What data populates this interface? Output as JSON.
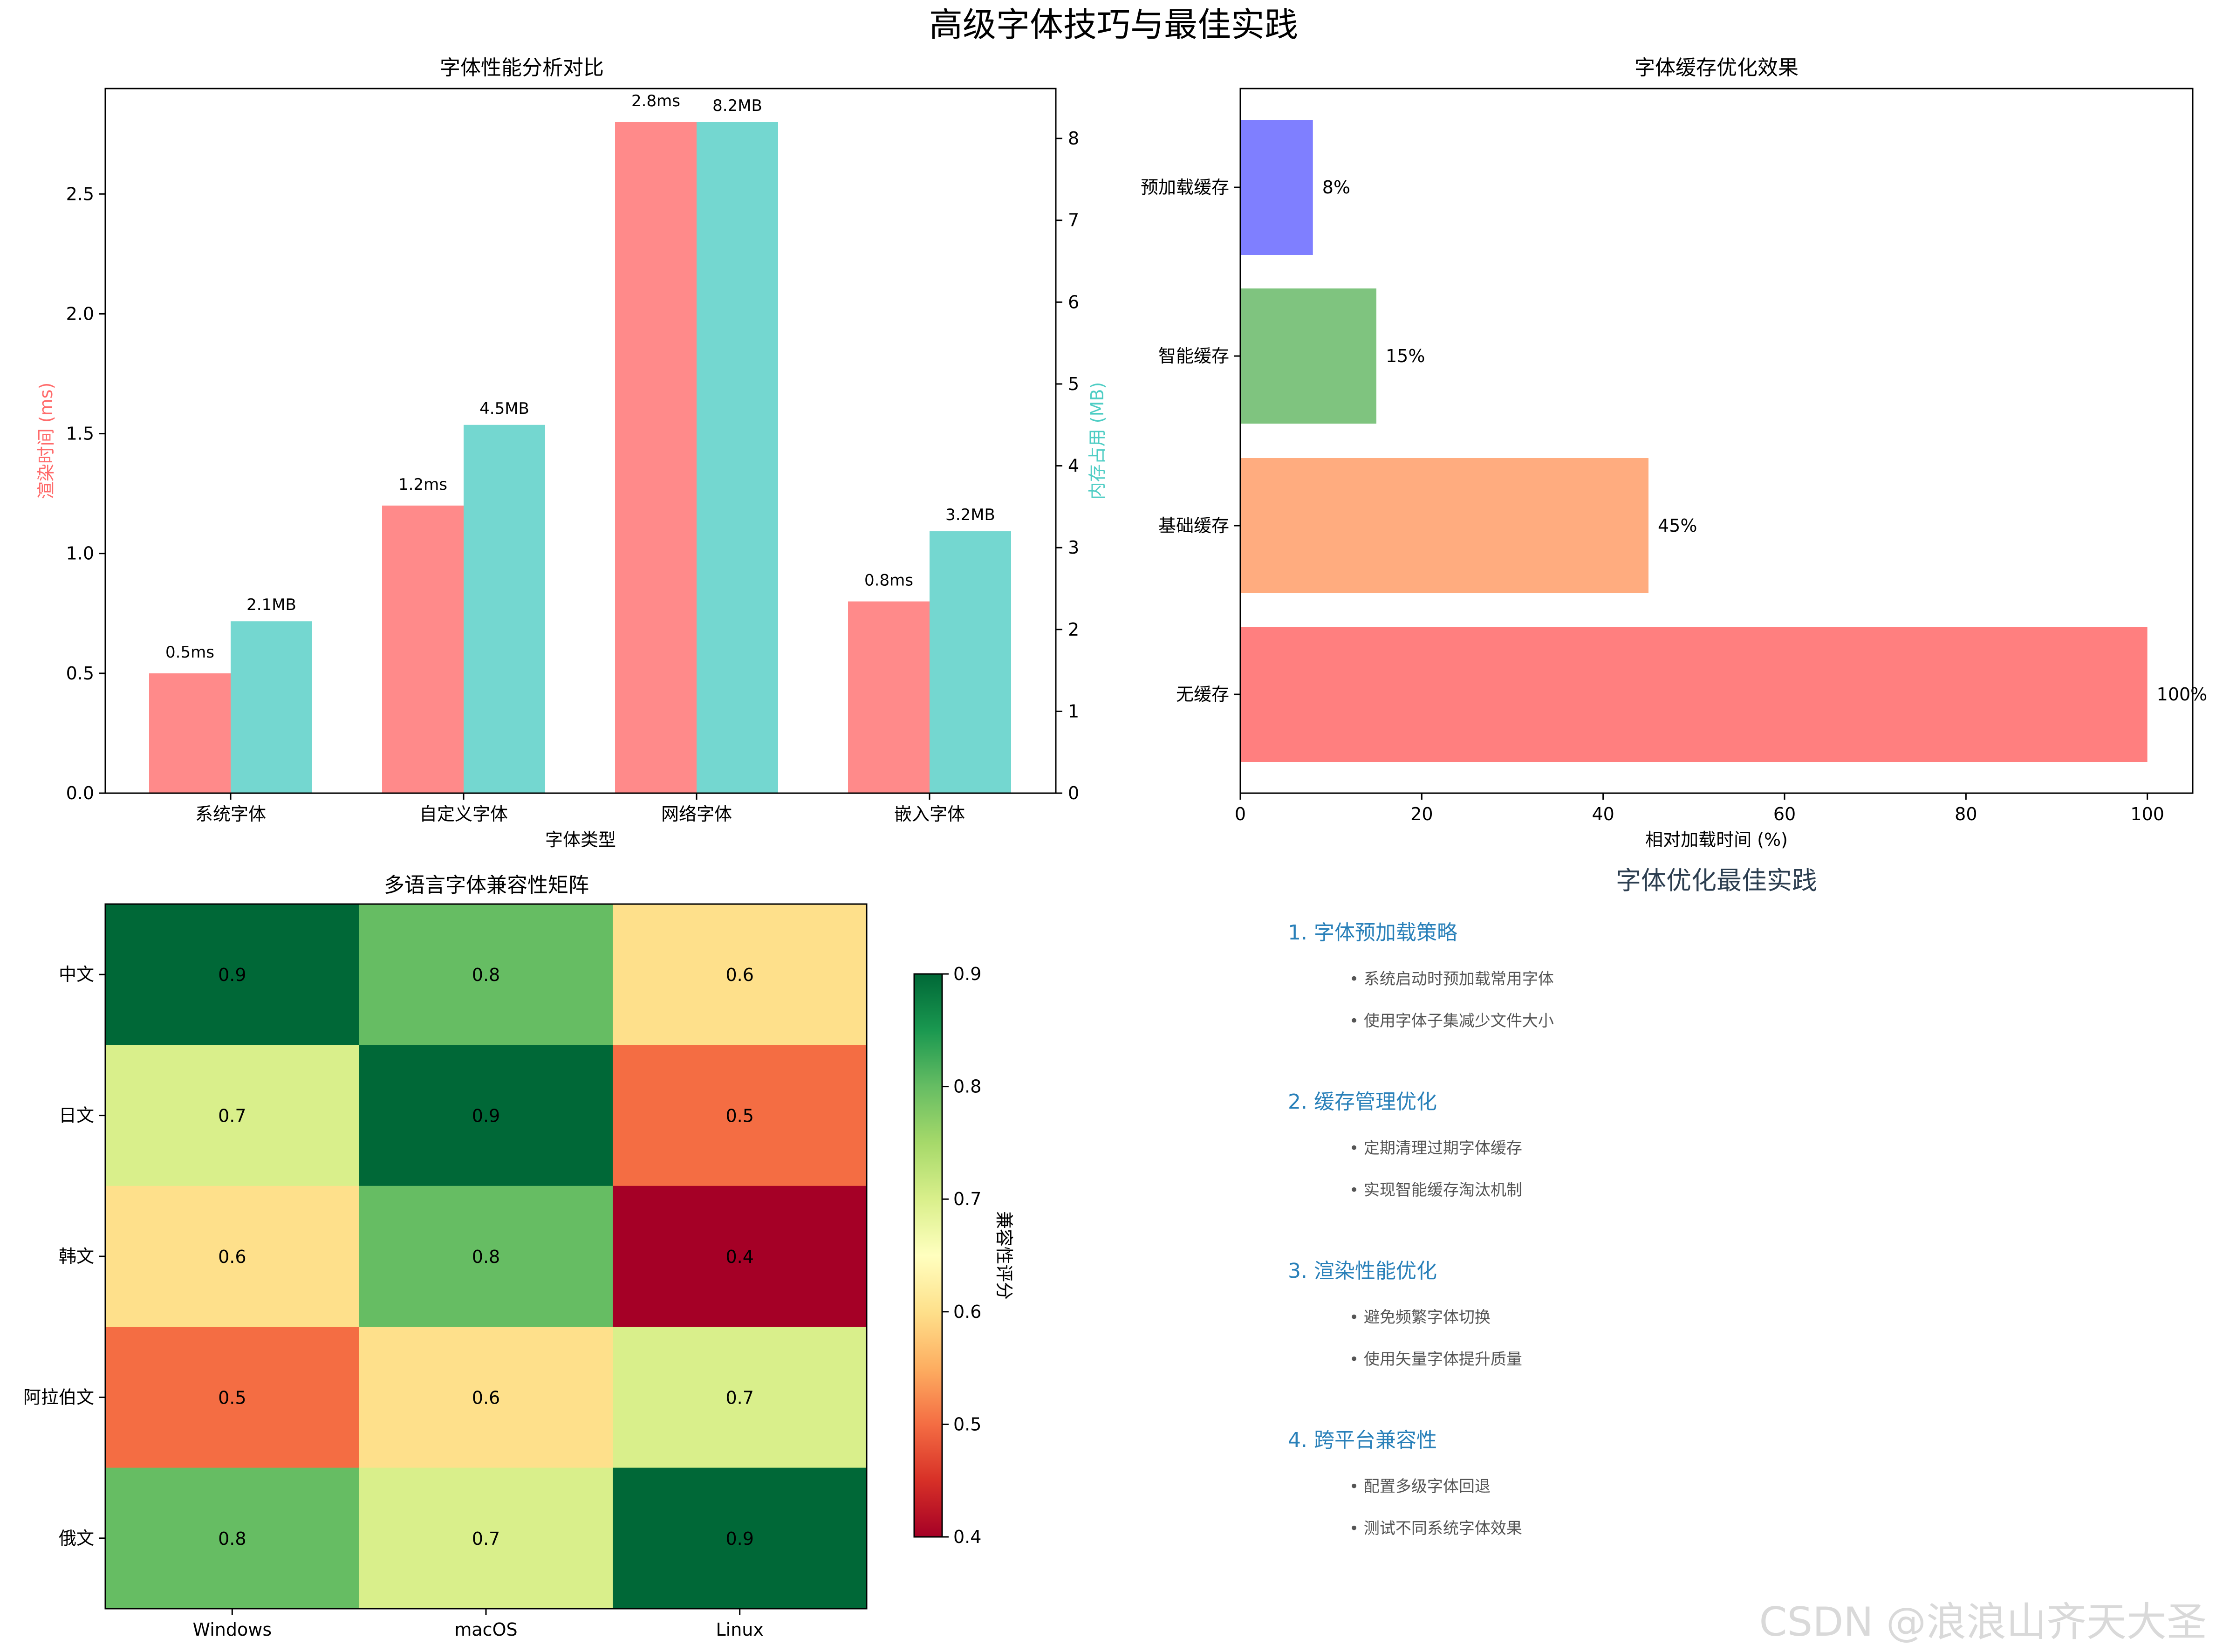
{
  "suptitle": "高级字体技巧与最佳实践",
  "watermark": "CSDN @浪浪山齐天大圣",
  "chart_data": [
    {
      "type": "bar",
      "title": "字体性能分析对比",
      "xlabel": "字体类型",
      "categories": [
        "系统字体",
        "自定义字体",
        "网络字体",
        "嵌入字体"
      ],
      "series": [
        {
          "name": "渲染时间 (ms)",
          "axis": "left",
          "color": "#FF8A8A",
          "values": [
            0.5,
            1.2,
            2.8,
            0.8
          ],
          "labels": [
            "0.5ms",
            "1.2ms",
            "2.8ms",
            "0.8ms"
          ]
        },
        {
          "name": "内存占用 (MB)",
          "axis": "right",
          "color": "#74D7D0",
          "values": [
            2.1,
            4.5,
            8.2,
            3.2
          ],
          "labels": [
            "2.1MB",
            "4.5MB",
            "8.2MB",
            "3.2MB"
          ]
        }
      ],
      "ylabel_left": "渲染时间 (ms)",
      "ylabel_right": "内存占用 (MB)",
      "ylabel_left_color": "#FF6B6B",
      "ylabel_right_color": "#4ECDC4",
      "ylim_left": [
        0,
        2.94
      ],
      "ylim_right": [
        0,
        8.61
      ],
      "yticks_left": [
        "0.0",
        "0.5",
        "1.0",
        "1.5",
        "2.0",
        "2.5"
      ],
      "yticks_right": [
        "0",
        "1",
        "2",
        "3",
        "4",
        "5",
        "6",
        "7",
        "8"
      ]
    },
    {
      "type": "bar",
      "orientation": "horizontal",
      "title": "字体缓存优化效果",
      "xlabel": "相对加载时间 (%)",
      "categories": [
        "无缓存",
        "基础缓存",
        "智能缓存",
        "预加载缓存"
      ],
      "values": [
        100,
        45,
        15,
        8
      ],
      "labels": [
        "100%",
        "45%",
        "15%",
        "8%"
      ],
      "colors": [
        "#FF7F7F",
        "#FFAC7F",
        "#7FC47F",
        "#7F7FFF"
      ],
      "xlim": [
        0,
        105
      ],
      "xticks": [
        "0",
        "20",
        "40",
        "60",
        "80",
        "100"
      ]
    },
    {
      "type": "heatmap",
      "title": "多语言字体兼容性矩阵",
      "x": [
        "Windows",
        "macOS",
        "Linux"
      ],
      "y": [
        "中文",
        "日文",
        "韩文",
        "阿拉伯文",
        "俄文"
      ],
      "values": [
        [
          0.9,
          0.8,
          0.6
        ],
        [
          0.7,
          0.9,
          0.5
        ],
        [
          0.6,
          0.8,
          0.4
        ],
        [
          0.5,
          0.6,
          0.7
        ],
        [
          0.8,
          0.7,
          0.9
        ]
      ],
      "colormap": "RdYlGn",
      "colorbar_label": "兼容性评分",
      "colorbar_range": [
        0.4,
        0.9
      ],
      "colorbar_ticks": [
        "0.4",
        "0.5",
        "0.6",
        "0.7",
        "0.8",
        "0.9"
      ]
    }
  ],
  "best_practices": {
    "title": "字体优化最佳实践",
    "title_color": "#2c3e50",
    "heading_color": "#2980b9",
    "text_color": "#555555",
    "sections": [
      {
        "heading": "1. 字体预加载策略",
        "items": [
          "• 系统启动时预加载常用字体",
          "• 使用字体子集减少文件大小"
        ]
      },
      {
        "heading": "2. 缓存管理优化",
        "items": [
          "• 定期清理过期字体缓存",
          "• 实现智能缓存淘汰机制"
        ]
      },
      {
        "heading": "3. 渲染性能优化",
        "items": [
          "• 避免频繁字体切换",
          "• 使用矢量字体提升质量"
        ]
      },
      {
        "heading": "4. 跨平台兼容性",
        "items": [
          "• 配置多级字体回退",
          "• 测试不同系统字体效果"
        ]
      }
    ]
  }
}
